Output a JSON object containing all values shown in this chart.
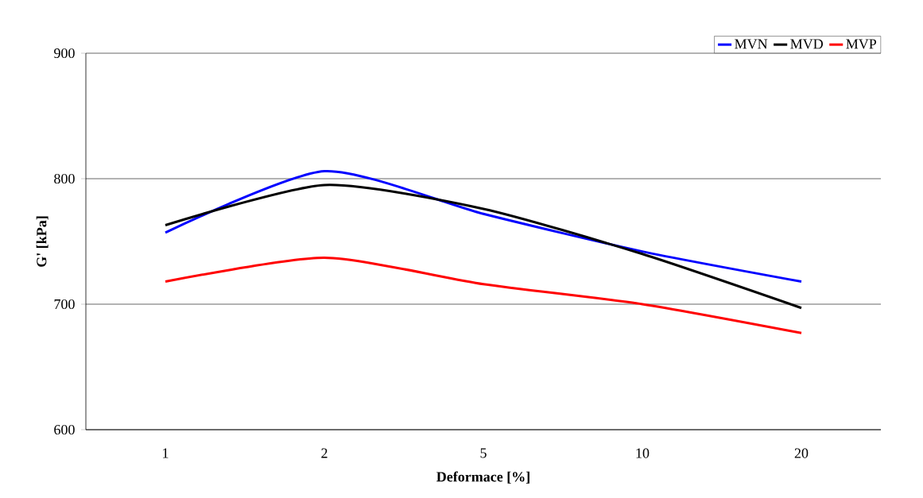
{
  "chart_data": {
    "type": "line",
    "xlabel": "Deformace [%]",
    "ylabel": "G' [kPa]",
    "categories": [
      "1",
      "2",
      "5",
      "10",
      "20"
    ],
    "series": [
      {
        "name": "MVN",
        "color": "#0000ff",
        "values": [
          757,
          806,
          772,
          742,
          718
        ]
      },
      {
        "name": "MVD",
        "color": "#000000",
        "values": [
          763,
          795,
          776,
          740,
          697
        ]
      },
      {
        "name": "MVP",
        "color": "#ff0000",
        "values": [
          718,
          737,
          716,
          700,
          677
        ]
      }
    ],
    "ylim": [
      600,
      900
    ],
    "yticks": [
      600,
      700,
      800,
      900
    ],
    "grid": "y",
    "legend": "top right",
    "marker": "none",
    "line_style": "solid"
  }
}
